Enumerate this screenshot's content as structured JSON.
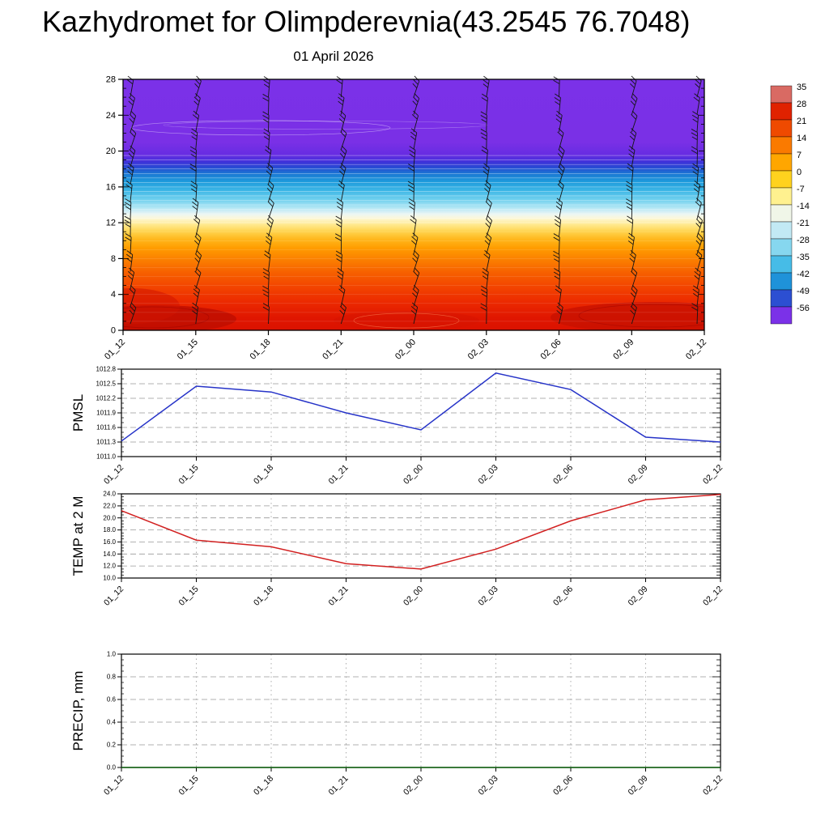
{
  "page": {
    "title": "Kazhydromet for Olimpderevnia(43.2545 76.7048)"
  },
  "chart_data": [
    {
      "type": "heatmap",
      "name": "temperature-height-profile",
      "title": "01 April 2026",
      "x": [
        "01_12",
        "01_15",
        "01_18",
        "01_21",
        "02_00",
        "02_03",
        "02_06",
        "02_09",
        "02_12"
      ],
      "ylim": [
        0,
        28
      ],
      "y_ticks": [
        0,
        4,
        8,
        12,
        16,
        20,
        24,
        28
      ],
      "wind_barbs": {
        "levels": 14
      },
      "gradient": [
        {
          "level": 28,
          "color": "#7b31e8"
        },
        {
          "level": 21,
          "color": "#7a30e6"
        },
        {
          "level": 19.6,
          "color": "#672ce2"
        },
        {
          "level": 19.0,
          "color": "#4a2fdc"
        },
        {
          "level": 18.5,
          "color": "#3139d6"
        },
        {
          "level": 18.0,
          "color": "#2356d2"
        },
        {
          "level": 17.4,
          "color": "#1a7ad4"
        },
        {
          "level": 16.6,
          "color": "#1e9bdc"
        },
        {
          "level": 15.6,
          "color": "#3cb6e6"
        },
        {
          "level": 14.6,
          "color": "#6fd0ee"
        },
        {
          "level": 13.8,
          "color": "#a8e3f3"
        },
        {
          "level": 13.2,
          "color": "#d8f0f6"
        },
        {
          "level": 12.8,
          "color": "#f2f7ec"
        },
        {
          "level": 12.4,
          "color": "#fdf6cd"
        },
        {
          "level": 11.8,
          "color": "#ffe98f"
        },
        {
          "level": 11.0,
          "color": "#ffd34d"
        },
        {
          "level": 10.2,
          "color": "#ffb81e"
        },
        {
          "level": 9.2,
          "color": "#ff9d00"
        },
        {
          "level": 8.0,
          "color": "#fb8200"
        },
        {
          "level": 6.6,
          "color": "#f76300"
        },
        {
          "level": 5.0,
          "color": "#f34700"
        },
        {
          "level": 3.2,
          "color": "#ec2a00"
        },
        {
          "level": 1.4,
          "color": "#e01600"
        },
        {
          "level": 0,
          "color": "#da1200"
        }
      ],
      "colorbar": {
        "tick_labels": [
          "35",
          "28",
          "21",
          "14",
          "7",
          "0",
          "-7",
          "-14",
          "-21",
          "-28",
          "-35",
          "-42",
          "-49",
          "-56"
        ],
        "colors": [
          "#d96a63",
          "#e02200",
          "#ef4a00",
          "#fa7a00",
          "#ffa600",
          "#ffd21e",
          "#fff18f",
          "#f0f6e8",
          "#c2e9f4",
          "#86d7ef",
          "#46bce7",
          "#1f92d9",
          "#2c4fd2",
          "#7b31e8"
        ]
      }
    },
    {
      "type": "line",
      "name": "pmsl",
      "ylabel": "PMSL",
      "x": [
        "01_12",
        "01_15",
        "01_18",
        "01_21",
        "02_00",
        "02_03",
        "02_06",
        "02_09",
        "02_12"
      ],
      "values": [
        1011.32,
        1012.45,
        1012.33,
        1011.9,
        1011.55,
        1012.72,
        1012.38,
        1011.4,
        1011.3
      ],
      "ylim": [
        1011.0,
        1012.8
      ],
      "y_ticks": [
        1011.0,
        1011.3,
        1011.6,
        1011.9,
        1012.2,
        1012.5,
        1012.8
      ],
      "y_tick_labels": [
        "1011.0",
        "1011.3",
        "1011.6",
        "1011.9",
        "1012.2",
        "1012.5",
        "1012.8"
      ],
      "y_minor": 0.1,
      "line_color": "#2633c8"
    },
    {
      "type": "line",
      "name": "temp-2m",
      "ylabel": "TEMP at 2 M",
      "x": [
        "01_12",
        "01_15",
        "01_18",
        "01_21",
        "02_00",
        "02_03",
        "02_06",
        "02_09",
        "02_12"
      ],
      "values": [
        21.2,
        16.3,
        15.2,
        12.4,
        11.5,
        14.8,
        19.5,
        23.0,
        23.9
      ],
      "ylim": [
        10.0,
        24.0
      ],
      "y_ticks": [
        10,
        12,
        14,
        16,
        18,
        20,
        22,
        24
      ],
      "y_tick_labels": [
        "10.0",
        "12.0",
        "14.0",
        "16.0",
        "18.0",
        "20.0",
        "22.0",
        "24.0"
      ],
      "y_minor": 0.5,
      "line_color": "#d22020"
    },
    {
      "type": "line",
      "name": "precip",
      "ylabel": "PRECIP, mm",
      "x": [
        "01_12",
        "01_15",
        "01_18",
        "01_21",
        "02_00",
        "02_03",
        "02_06",
        "02_09",
        "02_12"
      ],
      "values": [
        0,
        0,
        0,
        0,
        0,
        0,
        0,
        0,
        0
      ],
      "ylim": [
        0.0,
        1.0
      ],
      "y_ticks": [
        0,
        0.2,
        0.4,
        0.6,
        0.8,
        1.0
      ],
      "y_tick_labels": [
        "0.0",
        "0.2",
        "0.4",
        "0.6",
        "0.8",
        "1.0"
      ],
      "y_minor": 0.05,
      "line_color": "#0b5f0b"
    }
  ]
}
